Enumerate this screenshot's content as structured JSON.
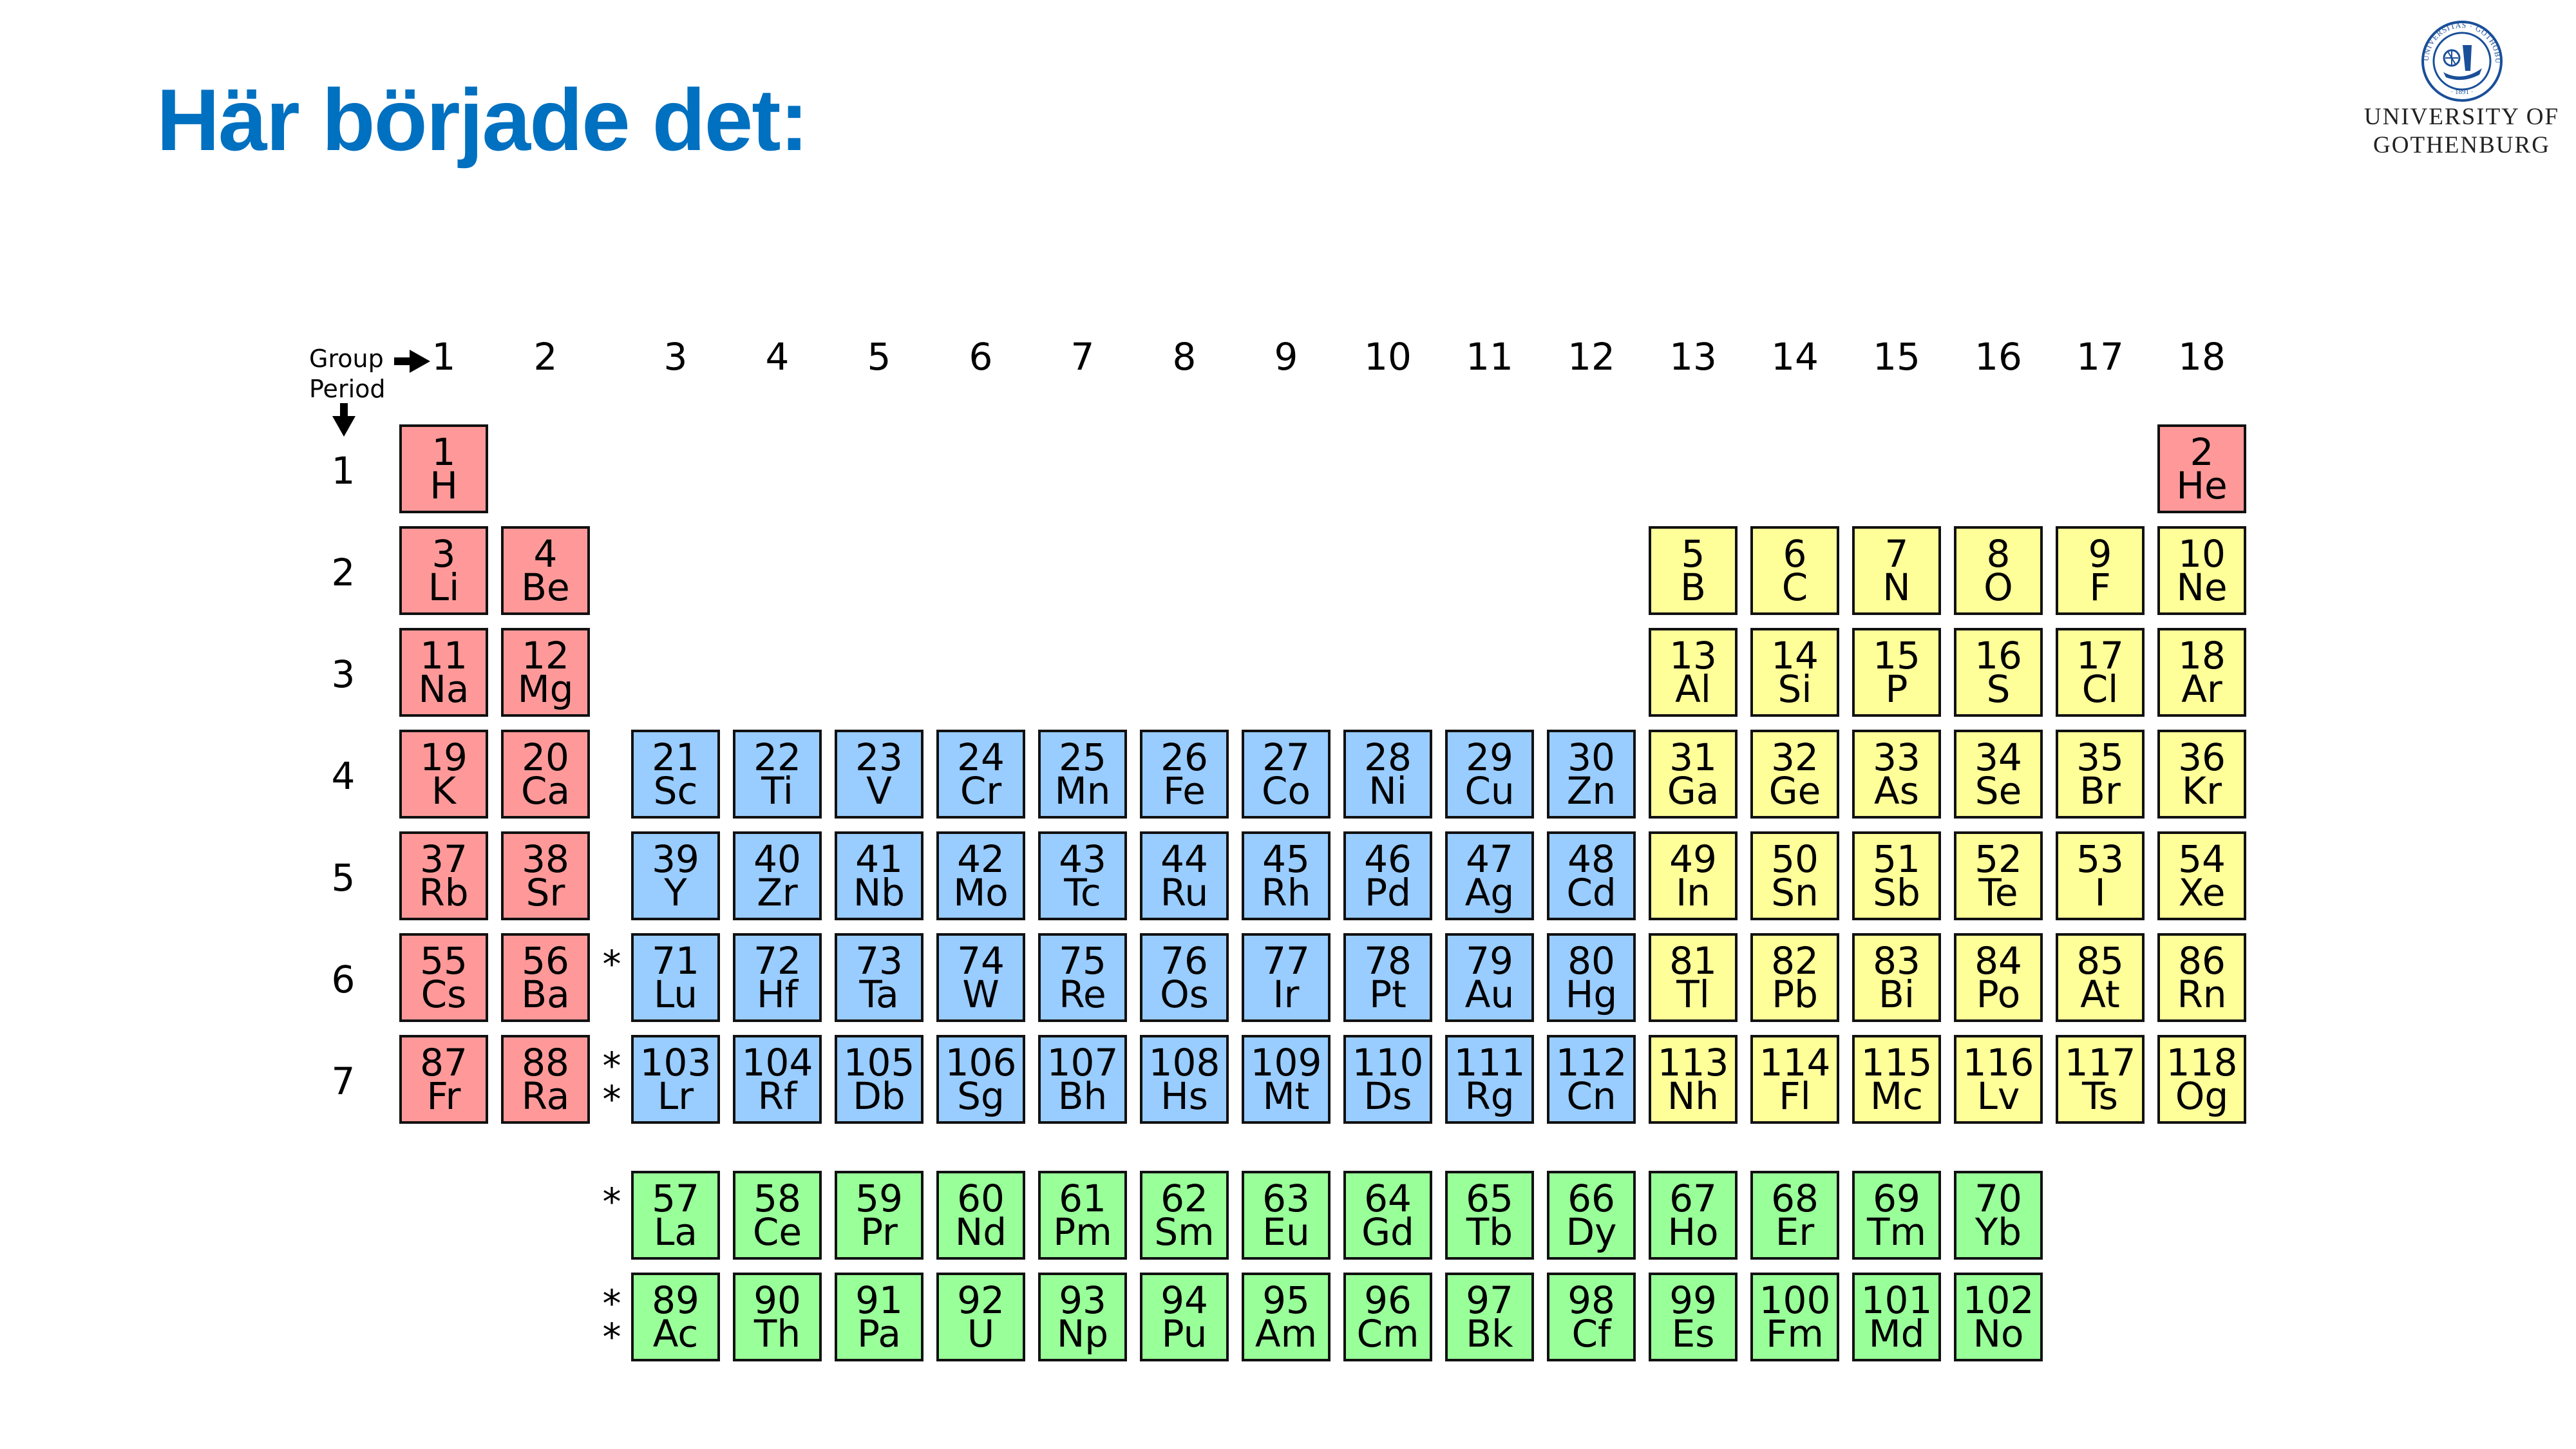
{
  "title": "Här började det:",
  "logo": {
    "line1": "UNIVERSITY OF",
    "line2": "GOTHENBURG",
    "seal_text": "UNIVERSITAS · GOTHOBURGENSIS · 1891",
    "color": "#1a4f99"
  },
  "table": {
    "group_label": "Group",
    "period_label": "Period",
    "groups": [
      "1",
      "2",
      "3",
      "4",
      "5",
      "6",
      "7",
      "8",
      "9",
      "10",
      "11",
      "12",
      "13",
      "14",
      "15",
      "16",
      "17",
      "18"
    ],
    "periods": [
      "1",
      "2",
      "3",
      "4",
      "5",
      "6",
      "7"
    ],
    "asterisk_single": "*",
    "asterisk_double": "*",
    "colors": {
      "s": "#ff9999",
      "d": "#99ccff",
      "p": "#ffff99",
      "f": "#99ff99"
    },
    "elements": [
      {
        "n": "1",
        "s": "H",
        "g": 1,
        "p": 1,
        "c": "s"
      },
      {
        "n": "2",
        "s": "He",
        "g": 18,
        "p": 1,
        "c": "s"
      },
      {
        "n": "3",
        "s": "Li",
        "g": 1,
        "p": 2,
        "c": "s"
      },
      {
        "n": "4",
        "s": "Be",
        "g": 2,
        "p": 2,
        "c": "s"
      },
      {
        "n": "5",
        "s": "B",
        "g": 13,
        "p": 2,
        "c": "p"
      },
      {
        "n": "6",
        "s": "C",
        "g": 14,
        "p": 2,
        "c": "p"
      },
      {
        "n": "7",
        "s": "N",
        "g": 15,
        "p": 2,
        "c": "p"
      },
      {
        "n": "8",
        "s": "O",
        "g": 16,
        "p": 2,
        "c": "p"
      },
      {
        "n": "9",
        "s": "F",
        "g": 17,
        "p": 2,
        "c": "p"
      },
      {
        "n": "10",
        "s": "Ne",
        "g": 18,
        "p": 2,
        "c": "p"
      },
      {
        "n": "11",
        "s": "Na",
        "g": 1,
        "p": 3,
        "c": "s"
      },
      {
        "n": "12",
        "s": "Mg",
        "g": 2,
        "p": 3,
        "c": "s"
      },
      {
        "n": "13",
        "s": "Al",
        "g": 13,
        "p": 3,
        "c": "p"
      },
      {
        "n": "14",
        "s": "Si",
        "g": 14,
        "p": 3,
        "c": "p"
      },
      {
        "n": "15",
        "s": "P",
        "g": 15,
        "p": 3,
        "c": "p"
      },
      {
        "n": "16",
        "s": "S",
        "g": 16,
        "p": 3,
        "c": "p"
      },
      {
        "n": "17",
        "s": "Cl",
        "g": 17,
        "p": 3,
        "c": "p"
      },
      {
        "n": "18",
        "s": "Ar",
        "g": 18,
        "p": 3,
        "c": "p"
      },
      {
        "n": "19",
        "s": "K",
        "g": 1,
        "p": 4,
        "c": "s"
      },
      {
        "n": "20",
        "s": "Ca",
        "g": 2,
        "p": 4,
        "c": "s"
      },
      {
        "n": "21",
        "s": "Sc",
        "g": 3,
        "p": 4,
        "c": "d"
      },
      {
        "n": "22",
        "s": "Ti",
        "g": 4,
        "p": 4,
        "c": "d"
      },
      {
        "n": "23",
        "s": "V",
        "g": 5,
        "p": 4,
        "c": "d"
      },
      {
        "n": "24",
        "s": "Cr",
        "g": 6,
        "p": 4,
        "c": "d"
      },
      {
        "n": "25",
        "s": "Mn",
        "g": 7,
        "p": 4,
        "c": "d"
      },
      {
        "n": "26",
        "s": "Fe",
        "g": 8,
        "p": 4,
        "c": "d"
      },
      {
        "n": "27",
        "s": "Co",
        "g": 9,
        "p": 4,
        "c": "d"
      },
      {
        "n": "28",
        "s": "Ni",
        "g": 10,
        "p": 4,
        "c": "d"
      },
      {
        "n": "29",
        "s": "Cu",
        "g": 11,
        "p": 4,
        "c": "d"
      },
      {
        "n": "30",
        "s": "Zn",
        "g": 12,
        "p": 4,
        "c": "d"
      },
      {
        "n": "31",
        "s": "Ga",
        "g": 13,
        "p": 4,
        "c": "p"
      },
      {
        "n": "32",
        "s": "Ge",
        "g": 14,
        "p": 4,
        "c": "p"
      },
      {
        "n": "33",
        "s": "As",
        "g": 15,
        "p": 4,
        "c": "p"
      },
      {
        "n": "34",
        "s": "Se",
        "g": 16,
        "p": 4,
        "c": "p"
      },
      {
        "n": "35",
        "s": "Br",
        "g": 17,
        "p": 4,
        "c": "p"
      },
      {
        "n": "36",
        "s": "Kr",
        "g": 18,
        "p": 4,
        "c": "p"
      },
      {
        "n": "37",
        "s": "Rb",
        "g": 1,
        "p": 5,
        "c": "s"
      },
      {
        "n": "38",
        "s": "Sr",
        "g": 2,
        "p": 5,
        "c": "s"
      },
      {
        "n": "39",
        "s": "Y",
        "g": 3,
        "p": 5,
        "c": "d"
      },
      {
        "n": "40",
        "s": "Zr",
        "g": 4,
        "p": 5,
        "c": "d"
      },
      {
        "n": "41",
        "s": "Nb",
        "g": 5,
        "p": 5,
        "c": "d"
      },
      {
        "n": "42",
        "s": "Mo",
        "g": 6,
        "p": 5,
        "c": "d"
      },
      {
        "n": "43",
        "s": "Tc",
        "g": 7,
        "p": 5,
        "c": "d"
      },
      {
        "n": "44",
        "s": "Ru",
        "g": 8,
        "p": 5,
        "c": "d"
      },
      {
        "n": "45",
        "s": "Rh",
        "g": 9,
        "p": 5,
        "c": "d"
      },
      {
        "n": "46",
        "s": "Pd",
        "g": 10,
        "p": 5,
        "c": "d"
      },
      {
        "n": "47",
        "s": "Ag",
        "g": 11,
        "p": 5,
        "c": "d"
      },
      {
        "n": "48",
        "s": "Cd",
        "g": 12,
        "p": 5,
        "c": "d"
      },
      {
        "n": "49",
        "s": "In",
        "g": 13,
        "p": 5,
        "c": "p"
      },
      {
        "n": "50",
        "s": "Sn",
        "g": 14,
        "p": 5,
        "c": "p"
      },
      {
        "n": "51",
        "s": "Sb",
        "g": 15,
        "p": 5,
        "c": "p"
      },
      {
        "n": "52",
        "s": "Te",
        "g": 16,
        "p": 5,
        "c": "p"
      },
      {
        "n": "53",
        "s": "I",
        "g": 17,
        "p": 5,
        "c": "p"
      },
      {
        "n": "54",
        "s": "Xe",
        "g": 18,
        "p": 5,
        "c": "p"
      },
      {
        "n": "55",
        "s": "Cs",
        "g": 1,
        "p": 6,
        "c": "s"
      },
      {
        "n": "56",
        "s": "Ba",
        "g": 2,
        "p": 6,
        "c": "s"
      },
      {
        "n": "71",
        "s": "Lu",
        "g": 3,
        "p": 6,
        "c": "d"
      },
      {
        "n": "72",
        "s": "Hf",
        "g": 4,
        "p": 6,
        "c": "d"
      },
      {
        "n": "73",
        "s": "Ta",
        "g": 5,
        "p": 6,
        "c": "d"
      },
      {
        "n": "74",
        "s": "W",
        "g": 6,
        "p": 6,
        "c": "d"
      },
      {
        "n": "75",
        "s": "Re",
        "g": 7,
        "p": 6,
        "c": "d"
      },
      {
        "n": "76",
        "s": "Os",
        "g": 8,
        "p": 6,
        "c": "d"
      },
      {
        "n": "77",
        "s": "Ir",
        "g": 9,
        "p": 6,
        "c": "d"
      },
      {
        "n": "78",
        "s": "Pt",
        "g": 10,
        "p": 6,
        "c": "d"
      },
      {
        "n": "79",
        "s": "Au",
        "g": 11,
        "p": 6,
        "c": "d"
      },
      {
        "n": "80",
        "s": "Hg",
        "g": 12,
        "p": 6,
        "c": "d"
      },
      {
        "n": "81",
        "s": "Tl",
        "g": 13,
        "p": 6,
        "c": "p"
      },
      {
        "n": "82",
        "s": "Pb",
        "g": 14,
        "p": 6,
        "c": "p"
      },
      {
        "n": "83",
        "s": "Bi",
        "g": 15,
        "p": 6,
        "c": "p"
      },
      {
        "n": "84",
        "s": "Po",
        "g": 16,
        "p": 6,
        "c": "p"
      },
      {
        "n": "85",
        "s": "At",
        "g": 17,
        "p": 6,
        "c": "p"
      },
      {
        "n": "86",
        "s": "Rn",
        "g": 18,
        "p": 6,
        "c": "p"
      },
      {
        "n": "87",
        "s": "Fr",
        "g": 1,
        "p": 7,
        "c": "s"
      },
      {
        "n": "88",
        "s": "Ra",
        "g": 2,
        "p": 7,
        "c": "s"
      },
      {
        "n": "103",
        "s": "Lr",
        "g": 3,
        "p": 7,
        "c": "d"
      },
      {
        "n": "104",
        "s": "Rf",
        "g": 4,
        "p": 7,
        "c": "d"
      },
      {
        "n": "105",
        "s": "Db",
        "g": 5,
        "p": 7,
        "c": "d"
      },
      {
        "n": "106",
        "s": "Sg",
        "g": 6,
        "p": 7,
        "c": "d"
      },
      {
        "n": "107",
        "s": "Bh",
        "g": 7,
        "p": 7,
        "c": "d"
      },
      {
        "n": "108",
        "s": "Hs",
        "g": 8,
        "p": 7,
        "c": "d"
      },
      {
        "n": "109",
        "s": "Mt",
        "g": 9,
        "p": 7,
        "c": "d"
      },
      {
        "n": "110",
        "s": "Ds",
        "g": 10,
        "p": 7,
        "c": "d"
      },
      {
        "n": "111",
        "s": "Rg",
        "g": 11,
        "p": 7,
        "c": "d"
      },
      {
        "n": "112",
        "s": "Cn",
        "g": 12,
        "p": 7,
        "c": "d"
      },
      {
        "n": "113",
        "s": "Nh",
        "g": 13,
        "p": 7,
        "c": "p"
      },
      {
        "n": "114",
        "s": "Fl",
        "g": 14,
        "p": 7,
        "c": "p"
      },
      {
        "n": "115",
        "s": "Mc",
        "g": 15,
        "p": 7,
        "c": "p"
      },
      {
        "n": "116",
        "s": "Lv",
        "g": 16,
        "p": 7,
        "c": "p"
      },
      {
        "n": "117",
        "s": "Ts",
        "g": 17,
        "p": 7,
        "c": "p"
      },
      {
        "n": "118",
        "s": "Og",
        "g": 18,
        "p": 7,
        "c": "p"
      }
    ],
    "lanthanides": [
      {
        "n": "57",
        "s": "La"
      },
      {
        "n": "58",
        "s": "Ce"
      },
      {
        "n": "59",
        "s": "Pr"
      },
      {
        "n": "60",
        "s": "Nd"
      },
      {
        "n": "61",
        "s": "Pm"
      },
      {
        "n": "62",
        "s": "Sm"
      },
      {
        "n": "63",
        "s": "Eu"
      },
      {
        "n": "64",
        "s": "Gd"
      },
      {
        "n": "65",
        "s": "Tb"
      },
      {
        "n": "66",
        "s": "Dy"
      },
      {
        "n": "67",
        "s": "Ho"
      },
      {
        "n": "68",
        "s": "Er"
      },
      {
        "n": "69",
        "s": "Tm"
      },
      {
        "n": "70",
        "s": "Yb"
      }
    ],
    "actinides": [
      {
        "n": "89",
        "s": "Ac"
      },
      {
        "n": "90",
        "s": "Th"
      },
      {
        "n": "91",
        "s": "Pa"
      },
      {
        "n": "92",
        "s": "U"
      },
      {
        "n": "93",
        "s": "Np"
      },
      {
        "n": "94",
        "s": "Pu"
      },
      {
        "n": "95",
        "s": "Am"
      },
      {
        "n": "96",
        "s": "Cm"
      },
      {
        "n": "97",
        "s": "Bk"
      },
      {
        "n": "98",
        "s": "Cf"
      },
      {
        "n": "99",
        "s": "Es"
      },
      {
        "n": "100",
        "s": "Fm"
      },
      {
        "n": "101",
        "s": "Md"
      },
      {
        "n": "102",
        "s": "No"
      }
    ]
  }
}
